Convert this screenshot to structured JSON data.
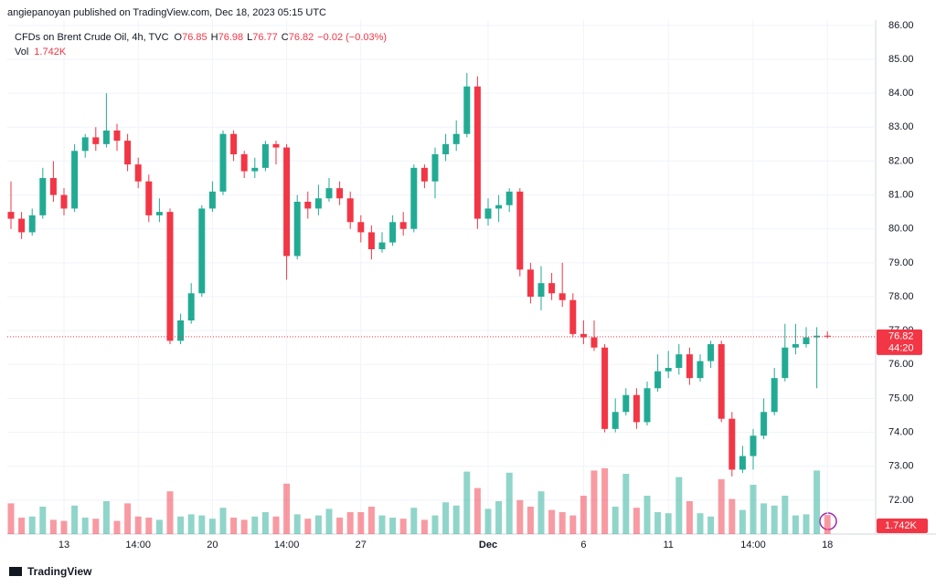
{
  "header": {
    "byline": "angiepanoyan published on TradingView.com, Dec 18, 2023 05:15 UTC"
  },
  "chart_data": {
    "type": "candlestick",
    "symbol": "CFDs on Brent Crude Oil, 4h, TVC",
    "legend_keys": [
      "O",
      "H",
      "L",
      "C"
    ],
    "change_label": "−0.02 (−0.03%)",
    "volume_title": "Vol",
    "volume_label": "1.742K",
    "countdown": "44:20",
    "up_color": "#22ab94",
    "down_color": "#f23645",
    "ylim": [
      71.0,
      86.75
    ],
    "yticks": [
      {
        "value": 86,
        "label": "86.00"
      },
      {
        "value": 85,
        "label": "85.00"
      },
      {
        "value": 84,
        "label": "84.00"
      },
      {
        "value": 83,
        "label": "83.00"
      },
      {
        "value": 82,
        "label": "82.00"
      },
      {
        "value": 81,
        "label": "81.00"
      },
      {
        "value": 80,
        "label": "80.00"
      },
      {
        "value": 79,
        "label": "79.00"
      },
      {
        "value": 78,
        "label": "78.00"
      },
      {
        "value": 77,
        "label": "77.00"
      },
      {
        "value": 76,
        "label": "76.00"
      },
      {
        "value": 75,
        "label": "75.00"
      },
      {
        "value": 74,
        "label": "74.00"
      },
      {
        "value": 73,
        "label": "73.00"
      },
      {
        "value": 72,
        "label": "72.00"
      }
    ],
    "grid": true,
    "categories": [
      null,
      null,
      null,
      null,
      null,
      "13",
      null,
      null,
      null,
      null,
      null,
      null,
      "14:00",
      null,
      null,
      null,
      null,
      null,
      null,
      "20",
      null,
      null,
      null,
      null,
      null,
      null,
      "14:00",
      null,
      null,
      null,
      null,
      null,
      null,
      "27",
      null,
      null,
      null,
      null,
      null,
      null,
      null,
      null,
      null,
      null,
      null,
      "Dec",
      null,
      null,
      null,
      null,
      null,
      null,
      null,
      null,
      "6",
      null,
      null,
      null,
      null,
      null,
      null,
      null,
      "11",
      null,
      null,
      null,
      null,
      null,
      null,
      null,
      "14:00",
      null,
      null,
      null,
      null,
      null,
      null,
      "18"
    ],
    "open": [
      80.5,
      80.3,
      79.9,
      80.4,
      81.5,
      81.0,
      80.6,
      82.3,
      82.7,
      82.5,
      82.9,
      82.6,
      81.9,
      81.4,
      80.4,
      80.5,
      76.7,
      77.3,
      78.1,
      80.6,
      81.1,
      82.8,
      82.2,
      81.7,
      81.8,
      82.5,
      82.4,
      79.2,
      80.8,
      80.6,
      80.9,
      81.2,
      80.9,
      80.2,
      79.9,
      79.4,
      79.6,
      80.2,
      80.0,
      81.8,
      81.4,
      82.2,
      82.5,
      82.8,
      84.2,
      80.3,
      80.6,
      80.7,
      81.1,
      78.8,
      78.0,
      78.4,
      78.1,
      77.9,
      76.9,
      76.8,
      76.5,
      74.1,
      74.6,
      75.1,
      74.3,
      75.3,
      75.8,
      75.9,
      76.3,
      75.6,
      76.1,
      76.6,
      74.4,
      72.9,
      73.3,
      73.9,
      74.6,
      75.6,
      76.5,
      76.6,
      76.8,
      76.85
    ],
    "high": [
      81.4,
      80.5,
      80.6,
      81.8,
      82.0,
      81.2,
      82.5,
      82.8,
      83.0,
      84.0,
      83.1,
      82.8,
      82.1,
      81.6,
      80.9,
      80.6,
      77.5,
      78.4,
      80.7,
      81.4,
      82.9,
      82.9,
      82.3,
      82.1,
      82.6,
      82.6,
      82.5,
      81.0,
      81.1,
      81.3,
      81.5,
      81.4,
      81.1,
      80.4,
      80.1,
      79.9,
      80.4,
      80.5,
      81.9,
      81.9,
      82.4,
      82.8,
      83.2,
      84.6,
      84.5,
      80.9,
      81.0,
      81.2,
      81.2,
      79.0,
      78.9,
      78.7,
      79.0,
      78.1,
      77.3,
      77.3,
      76.6,
      75.0,
      75.3,
      75.3,
      75.5,
      76.3,
      76.4,
      76.6,
      76.5,
      76.3,
      76.7,
      76.7,
      74.6,
      73.6,
      74.1,
      75.0,
      75.9,
      77.2,
      77.2,
      77.1,
      77.1,
      76.98
    ],
    "low": [
      80.0,
      79.7,
      79.8,
      80.3,
      80.8,
      80.4,
      80.5,
      82.1,
      82.3,
      82.4,
      82.3,
      81.7,
      81.2,
      80.2,
      80.2,
      76.6,
      76.6,
      77.2,
      78.0,
      80.5,
      81.0,
      82.0,
      81.5,
      81.5,
      81.7,
      81.9,
      78.5,
      79.1,
      80.3,
      80.4,
      80.8,
      80.7,
      80.0,
      79.6,
      79.1,
      79.3,
      79.5,
      79.8,
      79.9,
      81.2,
      80.9,
      82.0,
      82.3,
      82.7,
      80.0,
      80.1,
      80.2,
      80.5,
      78.6,
      77.8,
      77.6,
      77.9,
      77.7,
      76.8,
      76.6,
      76.4,
      74.0,
      74.0,
      74.5,
      74.1,
      74.2,
      75.2,
      75.6,
      75.7,
      75.4,
      75.5,
      75.9,
      74.3,
      72.7,
      72.8,
      72.9,
      73.8,
      74.5,
      75.5,
      76.3,
      76.5,
      75.3,
      76.77
    ],
    "close": [
      80.3,
      79.9,
      80.4,
      81.5,
      81.0,
      80.6,
      82.3,
      82.7,
      82.5,
      82.9,
      82.6,
      81.9,
      81.4,
      80.4,
      80.5,
      76.7,
      77.3,
      78.1,
      80.6,
      81.1,
      82.8,
      82.2,
      81.7,
      81.8,
      82.5,
      82.4,
      79.2,
      80.8,
      80.6,
      80.9,
      81.2,
      80.9,
      80.2,
      79.9,
      79.4,
      79.6,
      80.2,
      80.0,
      81.8,
      81.4,
      82.2,
      82.5,
      82.8,
      84.2,
      80.3,
      80.6,
      80.7,
      81.1,
      78.8,
      78.0,
      78.4,
      78.1,
      77.9,
      76.9,
      76.8,
      76.5,
      74.1,
      74.6,
      75.1,
      74.3,
      75.3,
      75.8,
      75.9,
      76.3,
      75.6,
      76.1,
      76.6,
      74.4,
      72.9,
      73.3,
      73.9,
      74.6,
      75.6,
      76.5,
      76.6,
      76.8,
      76.85,
      76.82
    ],
    "volume": [
      2.8,
      1.5,
      1.6,
      2.5,
      1.3,
      1.2,
      2.6,
      1.5,
      1.4,
      3.0,
      1.2,
      2.8,
      1.6,
      1.5,
      1.3,
      3.9,
      1.6,
      1.8,
      1.7,
      1.4,
      2.4,
      1.5,
      1.3,
      1.6,
      2.0,
      1.6,
      4.6,
      1.8,
      1.4,
      1.7,
      2.3,
      1.5,
      2.0,
      2.0,
      2.5,
      1.7,
      1.5,
      1.4,
      2.4,
      1.3,
      1.7,
      2.9,
      2.6,
      5.7,
      4.2,
      2.3,
      3.0,
      5.6,
      3.1,
      2.5,
      3.9,
      2.2,
      2.0,
      1.7,
      3.5,
      5.8,
      6.0,
      2.5,
      5.5,
      2.4,
      3.5,
      2.0,
      1.9,
      5.2,
      3.0,
      1.9,
      1.6,
      5.0,
      3.2,
      2.2,
      4.5,
      2.8,
      2.6,
      3.5,
      1.7,
      1.8,
      5.8,
      1.742
    ]
  },
  "footer": {
    "brand": "TradingView"
  }
}
